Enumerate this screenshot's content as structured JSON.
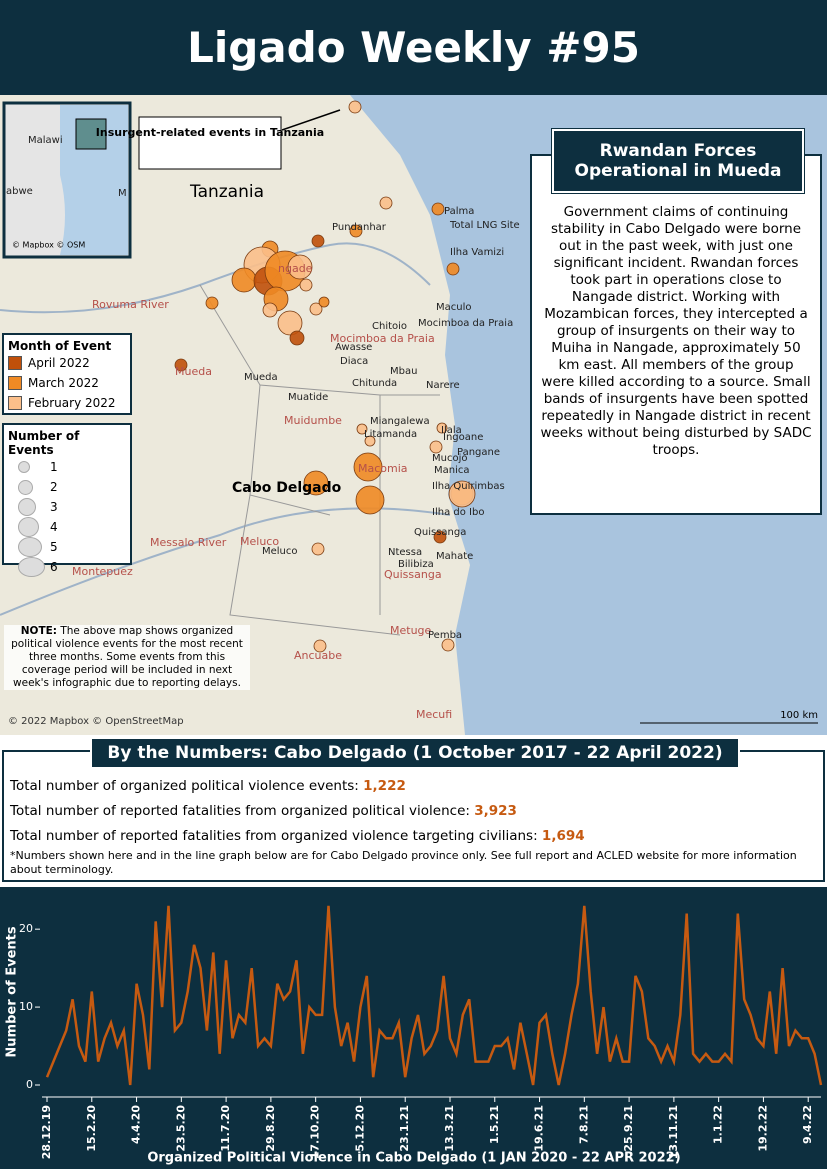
{
  "header": {
    "title": "Ligado Weekly #95"
  },
  "map": {
    "inset_label": "Malawi",
    "inset_label2": "abwe",
    "inset_label3": "M",
    "inset_credit": "© Mapbox © OSM",
    "callout": "Insurgent-related events in Tanzania",
    "country": "Tanzania",
    "region": "Cabo Delgado",
    "places": [
      "Palma",
      "Pundanhar",
      "Total LNG Site",
      "Ilha Vamizi",
      "Maculo",
      "Mocimboa da Praia",
      "Chitoio",
      "Mocimboa da Praia",
      "Awasse",
      "Diaca",
      "Mbau",
      "Chitunda",
      "Narere",
      "Mueda",
      "Mueda",
      "Muatide",
      "Muidumbe",
      "Miangalewa",
      "Litamanda",
      "Ilala",
      "Ingoane",
      "Pangane",
      "Mucojo",
      "Manica",
      "Macomia",
      "Ilha Quirimbas",
      "Ilha do Ibo",
      "Quissanga",
      "Quissanga",
      "Meluco",
      "Meluco",
      "Ntessa",
      "Bilibiza",
      "Mahate",
      "Montepuez",
      "Metuge",
      "Pemba",
      "Ancuabe",
      "Mecufi",
      "Rovuma River",
      "Messalo River",
      "ngade"
    ],
    "credit": "© 2022 Mapbox © OpenStreetMap",
    "scale": "100 km",
    "note_bold": "NOTE:",
    "note": "The above map shows organized political violence events for the most recent three months. Some events from this coverage period will be included in next week's infographic due to reporting delays."
  },
  "legend": {
    "month_title": "Month of Event",
    "months": [
      {
        "label": "April 2022",
        "color": "#c0500a"
      },
      {
        "label": "March 2022",
        "color": "#f08a24"
      },
      {
        "label": "February 2022",
        "color": "#fbbf8a"
      }
    ],
    "size_title": "Number of Events",
    "sizes": [
      "1",
      "2",
      "3",
      "4",
      "5",
      "6"
    ]
  },
  "sidebar": {
    "title": "Rwandan Forces Operational in Mueda",
    "body": "Government claims of continuing stability in Cabo Delgado were borne out in the past week, with just one significant incident. Rwandan forces took part in operations close to Nangade district. Working with Mozambican forces, they intercepted a group of insurgents on their way to Muiha in Nangade, approximately 50 km east. All members of the group were killed according to a source. Small bands of insurgents have been spotted repeatedly in Nangade district in recent weeks without being disturbed by SADC troops."
  },
  "numbers": {
    "title": "By the Numbers: Cabo Delgado (1 October 2017 - 22 April 2022)",
    "stats": [
      {
        "label": "Total number of organized political violence events:",
        "value": "1,222"
      },
      {
        "label": "Total number of reported fatalities from organized political violence:",
        "value": "3,923"
      },
      {
        "label": "Total number of reported fatalities from organized violence targeting civilians:",
        "value": "1,694"
      }
    ],
    "footnote": "*Numbers shown here and in the line graph below are for Cabo Delgado province only. See full report and ACLED website for more information about terminology."
  },
  "chart_data": {
    "type": "line",
    "x_label": "Organized Political Violence in Cabo Delgado (1 JAN 2020 - 22 APR 2022)",
    "y_label": "Number of Events",
    "categories": [
      "28.12.19",
      null,
      null,
      null,
      null,
      null,
      null,
      "15.2.20",
      null,
      null,
      null,
      null,
      null,
      null,
      "4.4.20",
      null,
      null,
      null,
      null,
      null,
      null,
      "23.5.20",
      null,
      null,
      null,
      null,
      null,
      null,
      "11.7.20",
      null,
      null,
      null,
      null,
      null,
      null,
      "29.8.20",
      null,
      null,
      null,
      null,
      null,
      null,
      "17.10.20",
      null,
      null,
      null,
      null,
      null,
      null,
      "5.12.20",
      null,
      null,
      null,
      null,
      null,
      null,
      "23.1.21",
      null,
      null,
      null,
      null,
      null,
      null,
      "13.3.21",
      null,
      null,
      null,
      null,
      null,
      null,
      "1.5.21",
      null,
      null,
      null,
      null,
      null,
      null,
      "19.6.21",
      null,
      null,
      null,
      null,
      null,
      null,
      "7.8.21",
      null,
      null,
      null,
      null,
      null,
      null,
      "25.9.21",
      null,
      null,
      null,
      null,
      null,
      null,
      "13.11.21",
      null,
      null,
      null,
      null,
      null,
      null,
      "1.1.22",
      null,
      null,
      null,
      null,
      null,
      null,
      "19.2.22",
      null,
      null,
      null,
      null,
      null,
      null,
      "9.4.22",
      null,
      null
    ],
    "series": [
      {
        "name": "Events",
        "color": "#c65a11",
        "values": [
          1,
          3,
          5,
          7,
          11,
          5,
          3,
          12,
          3,
          6,
          8,
          5,
          7,
          0,
          13,
          9,
          2,
          21,
          10,
          23,
          7,
          8,
          12,
          18,
          15,
          7,
          17,
          4,
          16,
          6,
          9,
          8,
          15,
          5,
          6,
          5,
          13,
          11,
          12,
          16,
          4,
          10,
          9,
          9,
          23,
          10,
          5,
          8,
          3,
          10,
          14,
          1,
          7,
          6,
          6,
          8,
          1,
          6,
          9,
          4,
          5,
          7,
          14,
          6,
          4,
          9,
          11,
          3,
          3,
          3,
          5,
          5,
          6,
          2,
          8,
          4,
          0,
          8,
          9,
          4,
          0,
          4,
          9,
          13,
          23,
          12,
          4,
          10,
          3,
          6,
          3,
          3,
          14,
          12,
          6,
          5,
          3,
          5,
          3,
          9,
          22,
          4,
          3,
          4,
          3,
          3,
          4,
          3,
          22,
          11,
          9,
          6,
          5,
          12,
          4,
          15,
          5,
          7,
          6,
          6,
          4,
          0
        ]
      }
    ],
    "ylim": [
      0,
      24
    ],
    "yticks": [
      0,
      10,
      20
    ]
  }
}
